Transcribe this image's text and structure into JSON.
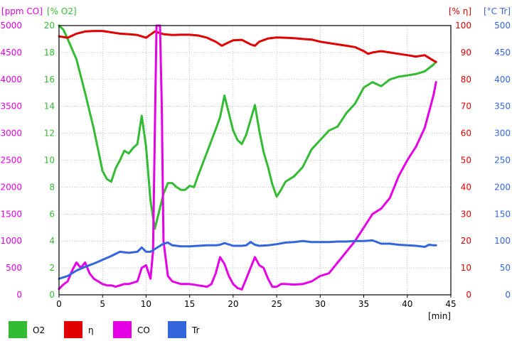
{
  "chart_data": {
    "type": "line",
    "xlabel": "[min]",
    "xlim": [
      0,
      45
    ],
    "x_ticks": [
      "0",
      "5",
      "10",
      "15",
      "20",
      "25",
      "30",
      "35",
      "40",
      "45"
    ],
    "grid": true,
    "legend_position": "bottom",
    "axes": [
      {
        "id": "co",
        "label": "[ppm CO]",
        "side": "left",
        "color": "#e600e6",
        "range": [
          0,
          5000
        ],
        "ticks": [
          "0",
          "500",
          "1000",
          "1500",
          "2000",
          "2500",
          "3000",
          "3500",
          "4000",
          "4500",
          "5000"
        ]
      },
      {
        "id": "o2",
        "label": "[% O2]",
        "side": "left",
        "color": "#33bb33",
        "range": [
          0,
          20
        ],
        "ticks": [
          "0",
          "2",
          "4",
          "6",
          "8",
          "10",
          "12",
          "14",
          "16",
          "18",
          "20"
        ]
      },
      {
        "id": "eta",
        "label": "[% η]",
        "side": "right",
        "color": "#e00000",
        "range": [
          0,
          100
        ],
        "ticks": [
          "0",
          "10",
          "20",
          "30",
          "40",
          "50",
          "60",
          "70",
          "80",
          "90",
          "100"
        ]
      },
      {
        "id": "tr",
        "label": "[°C Tr]",
        "side": "right",
        "color": "#3366dd",
        "range": [
          0,
          500
        ],
        "ticks": [
          "0",
          "50",
          "100",
          "150",
          "200",
          "250",
          "300",
          "350",
          "400",
          "450",
          "500"
        ]
      }
    ],
    "series": [
      {
        "name": "O2",
        "axis": "o2",
        "color": "#33bb33",
        "x": [
          0,
          0.5,
          1,
          2,
          3,
          4,
          5,
          5.5,
          6,
          6.5,
          7,
          7.5,
          8,
          8.5,
          9,
          9.5,
          10,
          10.5,
          11,
          11.5,
          12,
          12.5,
          13,
          13.5,
          14,
          14.5,
          15,
          15.5,
          16,
          17,
          18,
          18.5,
          19,
          19.5,
          20,
          20.5,
          21,
          21.5,
          22,
          22.5,
          23,
          23.5,
          24,
          24.5,
          25,
          25.5,
          26,
          27,
          28,
          29,
          30,
          31,
          32,
          33,
          34,
          35,
          36,
          37,
          38,
          39,
          40,
          41,
          42,
          43,
          43.3
        ],
        "values": [
          20,
          19.7,
          19,
          17.5,
          15,
          12.3,
          9.2,
          8.6,
          8.4,
          9.4,
          10,
          10.7,
          10.5,
          10.9,
          11.2,
          13.3,
          11,
          7,
          4.9,
          6.2,
          7.5,
          8.3,
          8.3,
          8,
          7.8,
          7.8,
          8.1,
          8,
          8.9,
          10.6,
          12.3,
          13.2,
          14.8,
          13.5,
          12.2,
          11.5,
          11.2,
          11.9,
          13,
          14.1,
          12.2,
          10.6,
          9.5,
          8.2,
          7.3,
          7.8,
          8.4,
          8.8,
          9.5,
          10.8,
          11.5,
          12.2,
          12.5,
          13.5,
          14.2,
          15.4,
          15.8,
          15.5,
          16,
          16.2,
          16.3,
          16.4,
          16.6,
          17.1,
          17.3
        ]
      },
      {
        "name": "η",
        "axis": "eta",
        "color": "#e00000",
        "x": [
          0,
          1,
          2,
          3,
          4,
          5,
          6,
          7,
          8,
          9,
          10,
          11,
          12,
          13,
          14,
          15,
          16,
          17,
          18,
          18.7,
          19.5,
          20,
          21,
          22,
          22.5,
          23,
          24,
          25,
          26,
          27,
          28,
          29,
          30,
          31,
          32,
          33,
          34,
          35,
          35.5,
          36,
          37,
          38,
          39,
          40,
          41,
          42,
          43,
          43.3
        ],
        "values": [
          96,
          95.5,
          97,
          97.8,
          98,
          98,
          97.5,
          97,
          96.8,
          96.5,
          95.5,
          97.8,
          96.8,
          96.5,
          96.6,
          96.6,
          96.3,
          95.5,
          94,
          92.5,
          93.8,
          94.5,
          94.7,
          93,
          92.5,
          94,
          95.2,
          95.6,
          95.5,
          95.3,
          95,
          94.8,
          94,
          93.5,
          93,
          92.5,
          92,
          90.5,
          89.5,
          90,
          90.5,
          90,
          89.5,
          89,
          88.5,
          89,
          87,
          86.5
        ]
      },
      {
        "name": "CO",
        "axis": "co",
        "color": "#e600e6",
        "x": [
          0,
          0.5,
          1,
          1.5,
          2,
          2.5,
          3,
          3.5,
          4,
          4.5,
          5,
          5.5,
          6,
          6.5,
          7,
          7.5,
          8,
          8.5,
          9,
          9.5,
          10,
          10.5,
          10.8,
          11,
          11.2,
          11.4,
          11.6,
          11.8,
          12,
          12.5,
          13,
          14,
          15,
          16,
          17,
          17.5,
          18,
          18.5,
          19,
          19.5,
          20,
          20.5,
          21,
          21.5,
          22,
          22.5,
          23,
          23.5,
          24,
          24.5,
          25,
          25.5,
          26,
          27,
          28,
          29,
          30,
          31,
          32,
          33,
          34,
          35,
          36,
          37,
          38,
          39,
          40,
          41,
          42,
          43,
          43.3
        ],
        "values": [
          110,
          190,
          250,
          450,
          600,
          500,
          600,
          400,
          300,
          250,
          200,
          175,
          175,
          150,
          175,
          200,
          200,
          225,
          250,
          500,
          550,
          300,
          800,
          3000,
          5000,
          5000,
          5000,
          3500,
          1000,
          350,
          250,
          200,
          200,
          175,
          150,
          200,
          400,
          700,
          575,
          350,
          200,
          125,
          100,
          300,
          500,
          700,
          550,
          500,
          300,
          150,
          150,
          200,
          200,
          190,
          200,
          250,
          350,
          400,
          600,
          800,
          1000,
          1250,
          1500,
          1600,
          1800,
          2200,
          2500,
          2750,
          3100,
          3700,
          3950
        ]
      },
      {
        "name": "Tr",
        "axis": "tr",
        "color": "#3366dd",
        "x": [
          0,
          1,
          2,
          3,
          4,
          5,
          6,
          7,
          8,
          9,
          9.5,
          10,
          10.5,
          11,
          11.5,
          12,
          12.5,
          13,
          14,
          15,
          16,
          17,
          18,
          18.5,
          19,
          20,
          21,
          21.5,
          22,
          22.5,
          23,
          24,
          25,
          26,
          27,
          28,
          29,
          30,
          31,
          32,
          33,
          34,
          35,
          36,
          37,
          38,
          39,
          40,
          41,
          42,
          42.5,
          43,
          43.3
        ],
        "values": [
          30,
          35,
          45,
          52,
          58,
          65,
          72,
          80,
          78,
          80,
          88,
          80,
          80,
          85,
          90,
          95,
          97,
          92,
          90,
          90,
          91,
          92,
          92,
          93,
          96,
          91,
          91,
          92,
          98,
          93,
          91,
          92,
          94,
          97,
          98,
          100,
          98,
          98,
          98,
          99,
          99,
          100,
          100,
          101,
          95,
          95,
          93,
          92,
          91,
          89,
          93,
          92,
          92
        ]
      }
    ]
  }
}
